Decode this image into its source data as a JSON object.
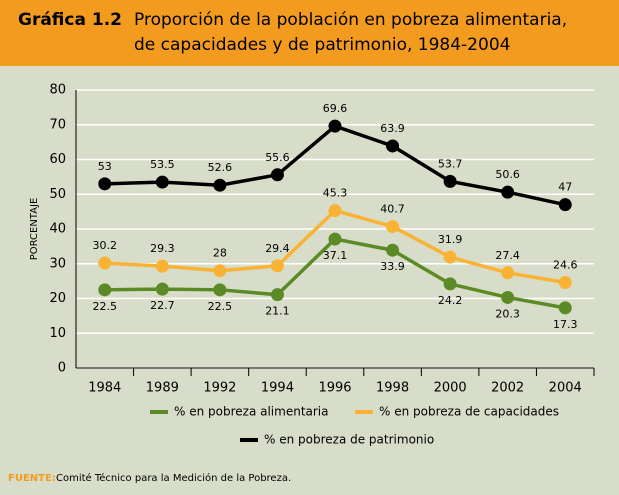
{
  "chart_data": {
    "type": "line",
    "figure_label": "Gráfica 1.2",
    "title": [
      "Proporción de la población en pobreza alimentaria,",
      "de capacidades y de patrimonio, 1984-2004"
    ],
    "ylabel": "PORCENTAJE",
    "categories": [
      "1984",
      "1989",
      "1992",
      "1994",
      "1996",
      "1998",
      "2000",
      "2002",
      "2004"
    ],
    "series": [
      {
        "name": "% en pobreza alimentaria",
        "color": "#5b8a26",
        "values": [
          22.5,
          22.7,
          22.5,
          21.1,
          37.1,
          33.9,
          24.2,
          20.3,
          17.3
        ]
      },
      {
        "name": "% en pobreza de capacidades",
        "color": "#f9b234",
        "values": [
          30.2,
          29.3,
          28,
          29.4,
          45.3,
          40.7,
          31.9,
          27.4,
          24.6
        ]
      },
      {
        "name": "% en pobreza de patrimonio",
        "color": "#000000",
        "values": [
          53,
          53.5,
          52.6,
          55.6,
          69.6,
          63.9,
          53.7,
          50.6,
          47
        ]
      }
    ],
    "ylim": [
      0,
      80
    ],
    "yticks": [
      0,
      10,
      20,
      30,
      40,
      50,
      60,
      70,
      80
    ],
    "grid": true,
    "source_label": "FUENTE:",
    "source": "Comité Técnico para la Medición de la Pobreza."
  }
}
